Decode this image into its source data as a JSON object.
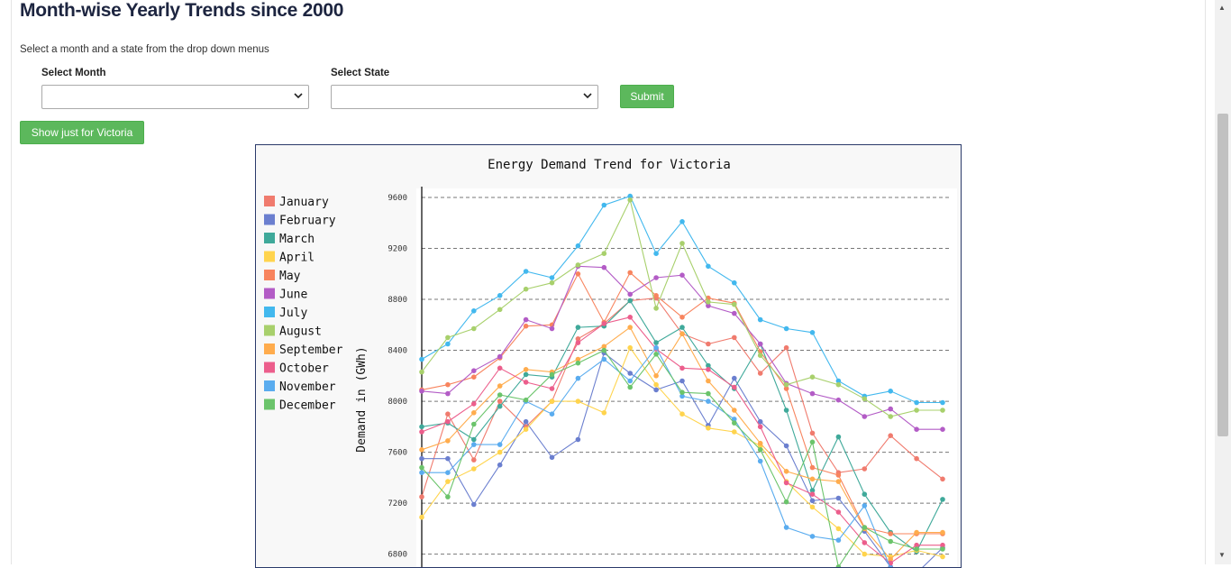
{
  "header": {
    "title": "Month-wise Yearly Trends since 2000"
  },
  "instructions": "Select a month and a state from the drop down menus",
  "form": {
    "month_label": "Select Month",
    "month_value": "",
    "state_label": "Select State",
    "state_value": "",
    "submit_label": "Submit"
  },
  "victoria_button_label": "Show just for Victoria",
  "colors": {
    "button": "#5cb85c",
    "title": "#1d2540",
    "chart_border": "#2a3a6a"
  },
  "chart_data": {
    "type": "line",
    "title": "Energy Demand Trend for Victoria",
    "xlabel": "",
    "ylabel": "Demand in (GWh)",
    "ylim": [
      6800,
      9600
    ],
    "yticks": [
      6800,
      7200,
      7600,
      8000,
      8400,
      8800,
      9200,
      9600
    ],
    "grid": true,
    "legend_position": "left",
    "x": [
      0,
      1,
      2,
      3,
      4,
      5,
      6,
      7,
      8,
      9,
      10,
      11,
      12,
      13,
      14,
      15,
      16,
      17,
      18,
      19,
      20
    ],
    "series": [
      {
        "name": "January",
        "color": "#f07b6e",
        "values": [
          7250,
          7900,
          7540,
          8000,
          7800,
          8000,
          8490,
          8610,
          8790,
          8810,
          8530,
          8450,
          8500,
          8220,
          8420,
          7750,
          7440,
          7470,
          7730,
          7550,
          7390
        ]
      },
      {
        "name": "February",
        "color": "#6b7fcf",
        "values": [
          7550,
          7550,
          7190,
          7500,
          7840,
          7560,
          7700,
          8380,
          8220,
          8090,
          8160,
          7810,
          8180,
          7840,
          7650,
          7220,
          7240,
          6980,
          6700,
          6650,
          6850
        ]
      },
      {
        "name": "March",
        "color": "#3fa99a",
        "values": [
          7800,
          7830,
          7700,
          7960,
          8210,
          8190,
          8580,
          8590,
          8790,
          8460,
          8580,
          8280,
          8100,
          8450,
          7930,
          7300,
          7720,
          7270,
          6970,
          6820,
          7230
        ]
      },
      {
        "name": "April",
        "color": "#ffd44d",
        "values": [
          7090,
          7370,
          7470,
          7600,
          7780,
          8000,
          8000,
          7910,
          8420,
          8130,
          7900,
          7790,
          7760,
          7650,
          7370,
          7170,
          7000,
          6800,
          6780,
          6830,
          6780
        ]
      },
      {
        "name": "May",
        "color": "#f8845e",
        "values": [
          8090,
          8130,
          8190,
          8340,
          8590,
          8600,
          9000,
          8620,
          9010,
          8830,
          8660,
          8810,
          8770,
          8390,
          8100,
          7480,
          7420,
          7010,
          6960,
          6960,
          6960
        ]
      },
      {
        "name": "June",
        "color": "#b35cc6",
        "values": [
          8080,
          8060,
          8240,
          8350,
          8640,
          8570,
          9060,
          9050,
          8840,
          8970,
          8990,
          8750,
          8690,
          8450,
          8140,
          8060,
          8010,
          7880,
          7940,
          7780,
          7780
        ]
      },
      {
        "name": "July",
        "color": "#42b8ee",
        "values": [
          8330,
          8450,
          8710,
          8830,
          9020,
          8970,
          9220,
          9540,
          9610,
          9160,
          9410,
          9060,
          8930,
          8640,
          8570,
          8540,
          8160,
          8040,
          8080,
          7990,
          7990
        ]
      },
      {
        "name": "August",
        "color": "#a8d06c",
        "values": [
          8230,
          8500,
          8570,
          8720,
          8880,
          8930,
          9070,
          9160,
          9580,
          8730,
          9240,
          8780,
          8760,
          8360,
          8130,
          8190,
          8130,
          8020,
          7880,
          7930,
          7930
        ]
      },
      {
        "name": "September",
        "color": "#ffac4d",
        "values": [
          7620,
          7690,
          7910,
          8120,
          8250,
          8230,
          8330,
          8430,
          8580,
          8200,
          8530,
          8160,
          7930,
          7670,
          7450,
          7390,
          7370,
          7000,
          6760,
          6970,
          6970
        ]
      },
      {
        "name": "October",
        "color": "#ec5e8c",
        "values": [
          7760,
          7840,
          7980,
          8260,
          8150,
          8100,
          8460,
          8610,
          8660,
          8410,
          8260,
          8250,
          8110,
          7800,
          7360,
          7270,
          7130,
          6890,
          6730,
          6870,
          6870
        ]
      },
      {
        "name": "November",
        "color": "#5aacef",
        "values": [
          7440,
          7440,
          7660,
          7660,
          8000,
          7900,
          8180,
          8330,
          8160,
          8420,
          8040,
          8000,
          7860,
          7530,
          7010,
          6940,
          6910,
          7180,
          6690,
          6650,
          6650
        ]
      },
      {
        "name": "December",
        "color": "#6bc46b",
        "values": [
          7480,
          7250,
          7820,
          8050,
          8010,
          8210,
          8300,
          8400,
          8110,
          8370,
          8070,
          8060,
          7830,
          7620,
          7210,
          7680,
          6700,
          7010,
          6900,
          6840,
          6840
        ]
      }
    ]
  }
}
